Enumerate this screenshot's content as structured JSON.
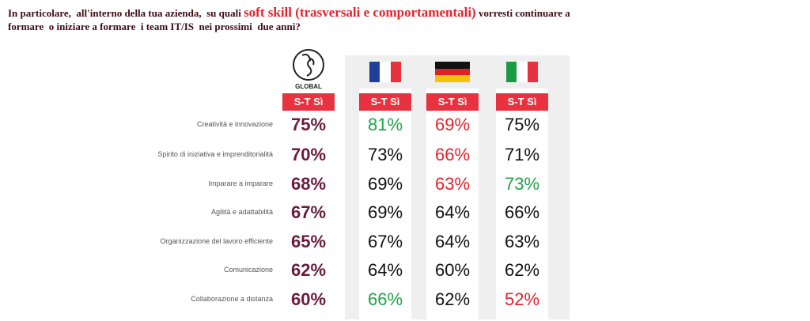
{
  "title": {
    "part1": "In particolare,  all'interno della tua azienda,  su quali ",
    "highlight": "soft skill (trasversali e comportamentali)",
    "part2": " vorresti continuare a",
    "line2": "formare  o iniziare a formare  i team IT/IS  nei prossimi  due anni?"
  },
  "logo_label": "GLOBAL",
  "columns": [
    {
      "header": "S-T Sì",
      "flag": "global"
    },
    {
      "header": "S-T Sì",
      "flag": "fr"
    },
    {
      "header": "S-T Sì",
      "flag": "de"
    },
    {
      "header": "S-T Sì",
      "flag": "it"
    }
  ],
  "rows": [
    {
      "label": "Creatività e innovazione",
      "cells": [
        {
          "text": "75%",
          "tone": "global"
        },
        {
          "text": "81%",
          "tone": "green"
        },
        {
          "text": "69%",
          "tone": "red"
        },
        {
          "text": "75%",
          "tone": "black"
        }
      ]
    },
    {
      "label": "Spirito di iniziativa e imprenditorialità",
      "cells": [
        {
          "text": "70%",
          "tone": "global"
        },
        {
          "text": "73%",
          "tone": "black"
        },
        {
          "text": "66%",
          "tone": "red"
        },
        {
          "text": "71%",
          "tone": "black"
        }
      ]
    },
    {
      "label": "Imparare a imparare",
      "cells": [
        {
          "text": "68%",
          "tone": "global"
        },
        {
          "text": "69%",
          "tone": "black"
        },
        {
          "text": "63%",
          "tone": "red"
        },
        {
          "text": "73%",
          "tone": "green"
        }
      ]
    },
    {
      "label": "Agilità e adattabilità",
      "cells": [
        {
          "text": "67%",
          "tone": "global"
        },
        {
          "text": "69%",
          "tone": "black"
        },
        {
          "text": "64%",
          "tone": "black"
        },
        {
          "text": "66%",
          "tone": "black"
        }
      ]
    },
    {
      "label": "Organizzazione del lavoro efficiente",
      "cells": [
        {
          "text": "65%",
          "tone": "global"
        },
        {
          "text": "67%",
          "tone": "black"
        },
        {
          "text": "64%",
          "tone": "black"
        },
        {
          "text": "63%",
          "tone": "black"
        }
      ]
    },
    {
      "label": "Comunicazione",
      "cells": [
        {
          "text": "62%",
          "tone": "global"
        },
        {
          "text": "64%",
          "tone": "black"
        },
        {
          "text": "60%",
          "tone": "black"
        },
        {
          "text": "62%",
          "tone": "black"
        }
      ]
    },
    {
      "label": "Collaborazione a distanza",
      "cells": [
        {
          "text": "60%",
          "tone": "global"
        },
        {
          "text": "66%",
          "tone": "green"
        },
        {
          "text": "62%",
          "tone": "black"
        },
        {
          "text": "52%",
          "tone": "red"
        }
      ]
    }
  ]
}
